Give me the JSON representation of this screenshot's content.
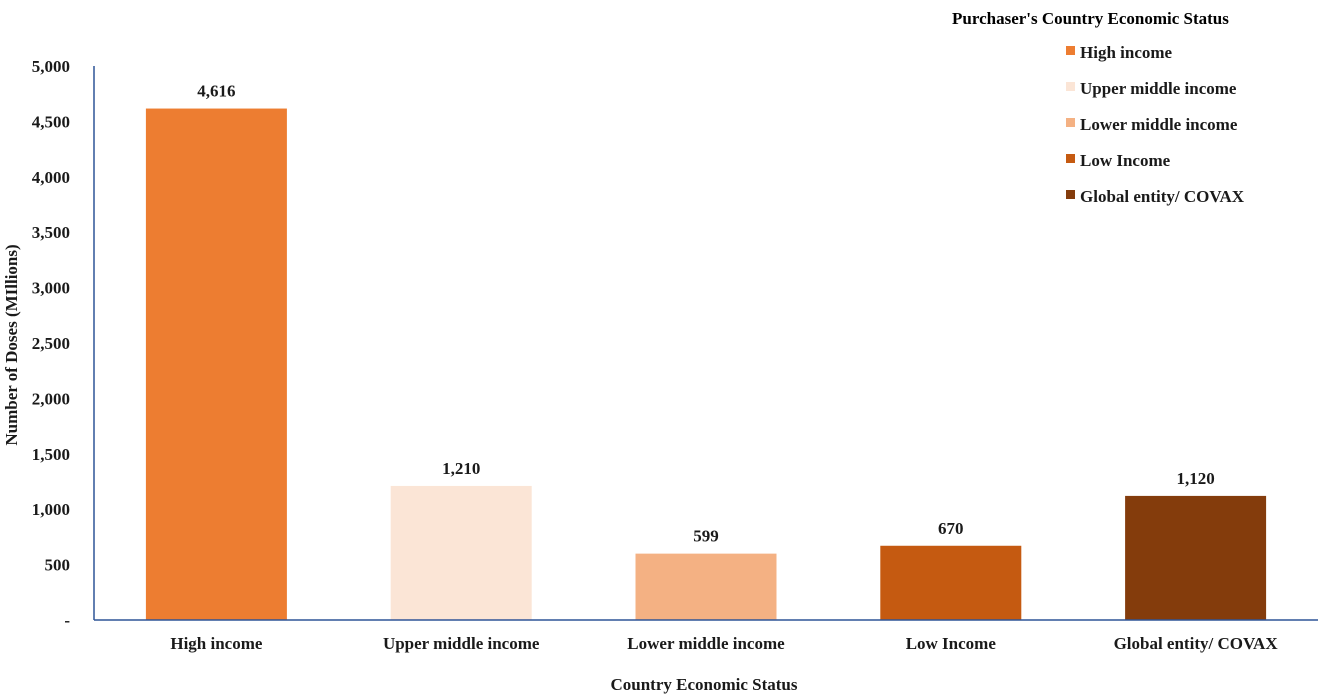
{
  "chart_data": {
    "type": "bar",
    "title": "",
    "xlabel": "Country Economic Status",
    "ylabel": "Number of Doses (MIllions)",
    "ylim": [
      0,
      5000
    ],
    "yticks": [
      0,
      500,
      1000,
      1500,
      2000,
      2500,
      3000,
      3500,
      4000,
      4500,
      5000
    ],
    "ytick_labels": [
      "-",
      "500",
      "1,000",
      "1,500",
      "2,000",
      "2,500",
      "3,000",
      "3,500",
      "4,000",
      "4,500",
      "5,000"
    ],
    "categories": [
      "High income",
      "Upper middle income",
      "Lower middle income",
      "Low Income",
      "Global entity/ COVAX"
    ],
    "values": [
      4616,
      1210,
      599,
      670,
      1120
    ],
    "value_labels": [
      "4,616",
      "1,210",
      "599",
      "670",
      "1,120"
    ],
    "colors": [
      "#ed7d31",
      "#fbe5d6",
      "#f4b183",
      "#c55a11",
      "#843c0c"
    ],
    "grid": false,
    "legend": {
      "title": "Purchaser's Country Economic Status",
      "placement": "top-right",
      "entries": [
        "High income",
        "Upper middle income",
        "Lower middle income",
        "Low Income",
        "Global entity/ COVAX"
      ]
    }
  }
}
